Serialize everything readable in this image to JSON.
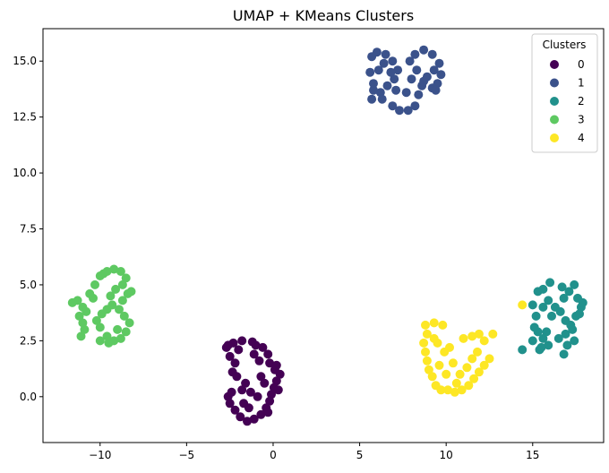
{
  "chart_data": {
    "type": "scatter",
    "title": "UMAP + KMeans Clusters",
    "xlabel": "",
    "ylabel": "",
    "xlim": [
      -13.3,
      19.1
    ],
    "ylim": [
      -2.05,
      16.45
    ],
    "x_ticks": [
      -10,
      -5,
      0,
      5,
      10,
      15
    ],
    "x_tick_labels": [
      "−10",
      "−5",
      "0",
      "5",
      "10",
      "15"
    ],
    "y_ticks": [
      0,
      2.5,
      5,
      7.5,
      10,
      12.5,
      15
    ],
    "y_tick_labels": [
      "0.0",
      "2.5",
      "5.0",
      "7.5",
      "10.0",
      "12.5",
      "15.0"
    ],
    "grid": false,
    "legend": {
      "title": "Clusters",
      "position": "top-right"
    },
    "series": [
      {
        "name": "0",
        "color": "#440154",
        "points": [
          [
            -1.2,
            2.45
          ],
          [
            -1.8,
            2.5
          ],
          [
            -2.3,
            2.4
          ],
          [
            -2.7,
            2.2
          ],
          [
            -2.5,
            1.8
          ],
          [
            -2.2,
            1.5
          ],
          [
            -2.35,
            1.1
          ],
          [
            -2.1,
            0.9
          ],
          [
            -0.6,
            2.2
          ],
          [
            -0.3,
            1.9
          ],
          [
            -0.2,
            1.5
          ],
          [
            0.1,
            1.2
          ],
          [
            0.4,
            1.0
          ],
          [
            0.2,
            0.7
          ],
          [
            0.05,
            0.4
          ],
          [
            -0.1,
            0.1
          ],
          [
            -0.2,
            -0.2
          ],
          [
            -0.4,
            -0.5
          ],
          [
            -0.7,
            -0.8
          ],
          [
            -1.1,
            -1.0
          ],
          [
            -1.5,
            -1.1
          ],
          [
            -1.9,
            -0.9
          ],
          [
            -2.2,
            -0.6
          ],
          [
            -2.5,
            -0.3
          ],
          [
            -2.6,
            0.0
          ],
          [
            -2.4,
            0.2
          ],
          [
            -1.8,
            0.3
          ],
          [
            -1.3,
            0.2
          ],
          [
            -0.9,
            0.0
          ],
          [
            -1.4,
            -0.5
          ],
          [
            -1.1,
            1.9
          ],
          [
            -0.8,
            1.6
          ],
          [
            0.3,
            0.3
          ],
          [
            -0.5,
            0.6
          ],
          [
            -1.7,
            -0.3
          ],
          [
            -2.0,
            2.1
          ],
          [
            0.2,
            1.4
          ],
          [
            -0.3,
            -0.7
          ],
          [
            -1.0,
            2.3
          ],
          [
            -2.6,
            2.3
          ],
          [
            -1.6,
            0.6
          ],
          [
            -0.7,
            0.9
          ]
        ]
      },
      {
        "name": "1",
        "color": "#3b528b",
        "points": [
          [
            5.6,
            14.5
          ],
          [
            5.7,
            15.2
          ],
          [
            6.0,
            15.4
          ],
          [
            6.5,
            15.3
          ],
          [
            6.9,
            15.0
          ],
          [
            7.2,
            14.6
          ],
          [
            7.0,
            14.2
          ],
          [
            6.6,
            13.9
          ],
          [
            6.2,
            13.6
          ],
          [
            5.7,
            13.3
          ],
          [
            5.8,
            13.7
          ],
          [
            6.3,
            13.3
          ],
          [
            6.9,
            13.0
          ],
          [
            7.3,
            12.8
          ],
          [
            7.8,
            12.8
          ],
          [
            8.2,
            13.0
          ],
          [
            8.4,
            13.5
          ],
          [
            8.6,
            13.9
          ],
          [
            8.9,
            14.3
          ],
          [
            9.3,
            14.6
          ],
          [
            9.6,
            14.9
          ],
          [
            9.7,
            14.4
          ],
          [
            9.5,
            14.0
          ],
          [
            9.2,
            13.8
          ],
          [
            8.7,
            14.1
          ],
          [
            8.3,
            14.6
          ],
          [
            7.9,
            15.0
          ],
          [
            8.2,
            15.3
          ],
          [
            8.7,
            15.5
          ],
          [
            9.2,
            15.3
          ],
          [
            6.1,
            14.6
          ],
          [
            7.7,
            13.6
          ],
          [
            7.1,
            13.7
          ],
          [
            5.8,
            14.0
          ],
          [
            9.4,
            13.7
          ],
          [
            6.8,
            14.5
          ],
          [
            8.0,
            14.2
          ],
          [
            6.4,
            14.9
          ]
        ]
      },
      {
        "name": "2",
        "color": "#21918c",
        "points": [
          [
            15.0,
            4.1
          ],
          [
            15.3,
            4.7
          ],
          [
            15.6,
            4.8
          ],
          [
            15.9,
            4.3
          ],
          [
            16.3,
            4.0
          ],
          [
            16.6,
            3.8
          ],
          [
            16.8,
            4.4
          ],
          [
            17.1,
            4.7
          ],
          [
            17.4,
            5.0
          ],
          [
            17.6,
            4.4
          ],
          [
            17.8,
            4.0
          ],
          [
            17.5,
            3.6
          ],
          [
            17.2,
            3.2
          ],
          [
            16.9,
            2.8
          ],
          [
            17.0,
            2.3
          ],
          [
            16.8,
            1.9
          ],
          [
            17.4,
            2.5
          ],
          [
            17.3,
            3.0
          ],
          [
            15.0,
            2.5
          ],
          [
            15.3,
            2.9
          ],
          [
            15.6,
            2.6
          ],
          [
            15.9,
            2.3
          ],
          [
            15.4,
            2.1
          ],
          [
            15.8,
            2.9
          ],
          [
            16.1,
            3.6
          ],
          [
            15.2,
            3.6
          ],
          [
            15.6,
            4.0
          ],
          [
            16.5,
            2.6
          ],
          [
            17.7,
            3.7
          ],
          [
            16.7,
            4.9
          ],
          [
            16.0,
            5.1
          ],
          [
            17.9,
            4.2
          ],
          [
            15.1,
            3.1
          ],
          [
            16.9,
            3.4
          ],
          [
            15.5,
            2.2
          ],
          [
            14.4,
            2.1
          ]
        ]
      },
      {
        "name": "3",
        "color": "#5ec962",
        "points": [
          [
            -11.6,
            4.2
          ],
          [
            -11.3,
            4.3
          ],
          [
            -11.0,
            4.0
          ],
          [
            -11.2,
            3.6
          ],
          [
            -11.0,
            3.3
          ],
          [
            -10.9,
            3.0
          ],
          [
            -11.1,
            2.7
          ],
          [
            -10.6,
            4.6
          ],
          [
            -10.3,
            5.0
          ],
          [
            -10.0,
            5.4
          ],
          [
            -9.6,
            5.6
          ],
          [
            -9.2,
            5.7
          ],
          [
            -8.8,
            5.6
          ],
          [
            -8.5,
            5.3
          ],
          [
            -8.7,
            5.0
          ],
          [
            -9.1,
            4.8
          ],
          [
            -9.4,
            4.5
          ],
          [
            -9.3,
            4.1
          ],
          [
            -9.6,
            3.9
          ],
          [
            -9.9,
            3.7
          ],
          [
            -10.2,
            3.4
          ],
          [
            -10.0,
            3.1
          ],
          [
            -9.6,
            2.7
          ],
          [
            -9.2,
            2.5
          ],
          [
            -8.8,
            2.6
          ],
          [
            -8.5,
            2.9
          ],
          [
            -8.3,
            3.3
          ],
          [
            -8.6,
            3.6
          ],
          [
            -8.9,
            3.9
          ],
          [
            -8.4,
            4.6
          ],
          [
            -8.2,
            4.7
          ],
          [
            -10.0,
            2.5
          ],
          [
            -9.5,
            2.4
          ],
          [
            -10.4,
            4.4
          ],
          [
            -9.0,
            3.0
          ],
          [
            -8.7,
            4.3
          ],
          [
            -10.8,
            3.8
          ],
          [
            -9.8,
            5.5
          ]
        ]
      },
      {
        "name": "4",
        "color": "#fde725",
        "points": [
          [
            8.8,
            3.2
          ],
          [
            9.3,
            3.3
          ],
          [
            9.8,
            3.2
          ],
          [
            8.9,
            2.8
          ],
          [
            8.7,
            2.4
          ],
          [
            8.8,
            2.0
          ],
          [
            8.9,
            1.6
          ],
          [
            9.0,
            1.2
          ],
          [
            9.2,
            0.9
          ],
          [
            9.4,
            0.5
          ],
          [
            9.7,
            0.3
          ],
          [
            10.1,
            0.3
          ],
          [
            10.5,
            0.2
          ],
          [
            10.9,
            0.3
          ],
          [
            11.3,
            0.5
          ],
          [
            11.6,
            0.8
          ],
          [
            11.9,
            1.1
          ],
          [
            12.2,
            1.4
          ],
          [
            12.5,
            1.7
          ],
          [
            12.2,
            2.5
          ],
          [
            12.7,
            2.8
          ],
          [
            11.5,
            1.7
          ],
          [
            11.2,
            1.3
          ],
          [
            10.8,
            1.0
          ],
          [
            10.4,
            1.5
          ],
          [
            9.9,
            2.0
          ],
          [
            9.6,
            1.4
          ],
          [
            10.0,
            1.0
          ],
          [
            9.5,
            2.4
          ],
          [
            11.0,
            2.6
          ],
          [
            11.5,
            2.7
          ],
          [
            10.2,
            2.2
          ],
          [
            11.8,
            2.0
          ],
          [
            9.3,
            2.6
          ],
          [
            10.6,
            0.6
          ],
          [
            11.9,
            2.8
          ],
          [
            14.4,
            4.1
          ]
        ]
      }
    ]
  }
}
